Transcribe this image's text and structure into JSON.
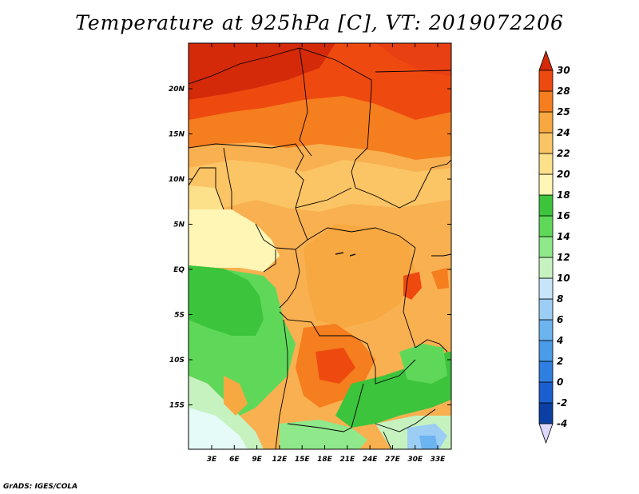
{
  "title": "Temperature at 925hPa [C], VT: 2019072206",
  "credit": "GrADS: IGES/COLA",
  "map": {
    "lon_ticks": [
      "3E",
      "6E",
      "9E",
      "12E",
      "15E",
      "18E",
      "21E",
      "24E",
      "27E",
      "30E",
      "33E"
    ],
    "lat_ticks": [
      "20N",
      "15N",
      "10N",
      "5N",
      "EQ",
      "5S",
      "10S",
      "15S"
    ]
  },
  "colorbar": {
    "levels": [
      "-4",
      "-2",
      "0",
      "2",
      "4",
      "6",
      "8",
      "10",
      "12",
      "14",
      "16",
      "18",
      "20",
      "22",
      "24",
      "25",
      "28",
      "30"
    ],
    "colors": [
      "#0a0a6e",
      "#0b3fa3",
      "#1a5fcf",
      "#2f7fe0",
      "#4a9be8",
      "#6cb4f0",
      "#9ccdf5",
      "#c8e4fa",
      "#c6f2c0",
      "#8fe88a",
      "#5fd85a",
      "#3cc43c",
      "#fff5b4",
      "#fde08a",
      "#fbc464",
      "#f8a840",
      "#f57e1e",
      "#ee4a10",
      "#d42a0a"
    ]
  }
}
